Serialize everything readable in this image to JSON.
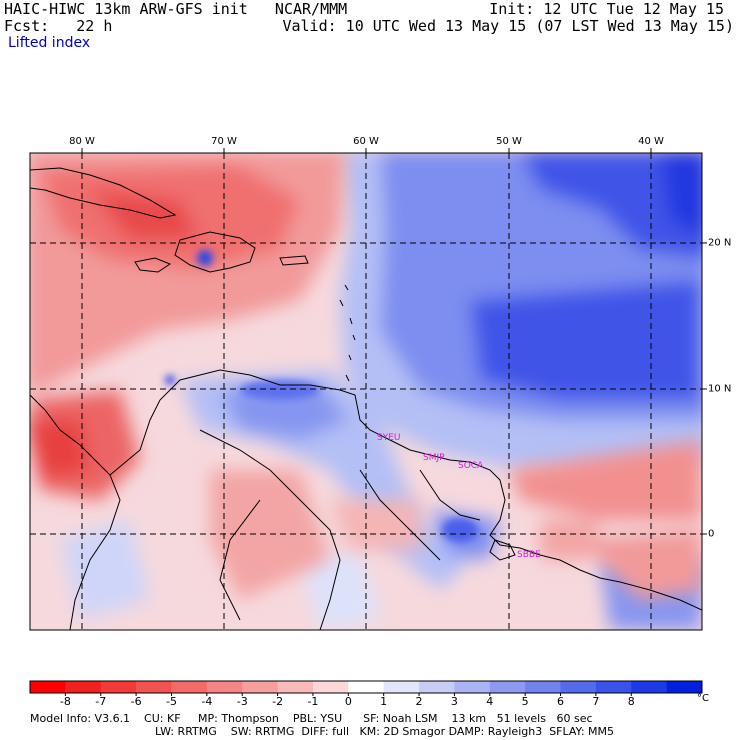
{
  "header": {
    "model_title": "HAIC-HIWC 13km ARW-GFS init   NCAR/MMM",
    "forecast": "Fcst:   22 h",
    "init": "Init: 12 UTC Tue 12 May 15",
    "valid": "Valid: 10 UTC Wed 13 May 15 (07 LST Wed 13 May 15)",
    "field": "Lifted index"
  },
  "map": {
    "lon_labels": [
      "80 W",
      "70 W",
      "60 W",
      "50 W",
      "40 W"
    ],
    "lat_labels": [
      "20 N",
      "10 N",
      "0"
    ],
    "stations": [
      "SYEU",
      "SMJP",
      "SOCA",
      "SBBE"
    ],
    "colors": {
      "strong_red": "#e84040",
      "red": "#f07070",
      "light_red": "#f8b0b0",
      "pale": "#fde6e6",
      "pale_blue": "#dde2fb",
      "light_blue": "#b4bff5",
      "blue": "#7d8ef0",
      "deep_blue": "#3346e6",
      "station_label": "#d020d0"
    }
  },
  "colorbar": {
    "labels": [
      "-8",
      "-7",
      "-6",
      "-5",
      "-4",
      "-3",
      "-2",
      "-1",
      "0",
      "1",
      "2",
      "3",
      "4",
      "5",
      "6",
      "7",
      "8"
    ],
    "unit": "°C",
    "colors": [
      "#ff0000",
      "#f22020",
      "#f23a3a",
      "#f35252",
      "#f46a6a",
      "#f58484",
      "#f79e9e",
      "#f9baba",
      "#fcd8d8",
      "#ffffff",
      "#e2e6fc",
      "#c6cef8",
      "#aab4f5",
      "#8e9af2",
      "#7282ef",
      "#566aec",
      "#3a52e9",
      "#1e3ae6",
      "#0020e0"
    ]
  },
  "model_info": {
    "line1": "Model Info: V3.6.1    CU: KF     MP: Thompson    PBL: YSU      SF: Noah LSM    13 km   51 levels   60 sec",
    "line2": "LW: RRTMG    SW: RRTMG  DIFF: full   KM: 2D Smagor DAMP: Rayleigh3  SFLAY: MM5"
  }
}
